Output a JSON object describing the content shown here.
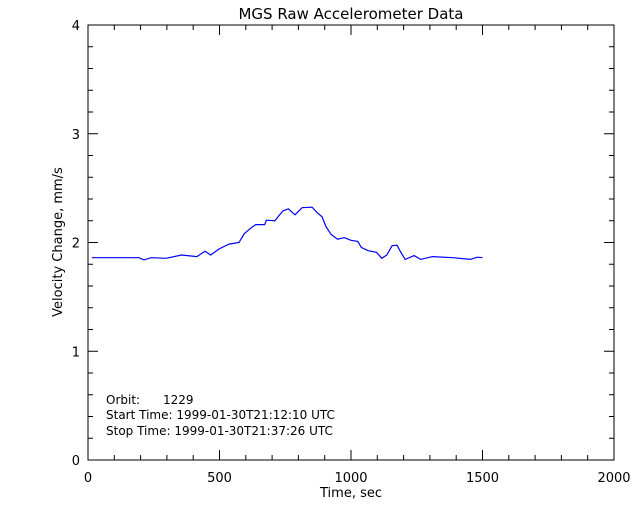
{
  "chart_data": {
    "type": "line",
    "title": "MGS Raw Accelerometer Data",
    "xlabel": "Time, sec",
    "ylabel": "Velocity Change, mm/s",
    "xlim": [
      0,
      2000
    ],
    "ylim": [
      0,
      4
    ],
    "xticks": [
      0,
      500,
      1000,
      1500,
      2000
    ],
    "yticks": [
      0,
      1,
      2,
      3,
      4
    ],
    "xtick_labels": [
      "0",
      "500",
      "1000",
      "1500",
      "2000"
    ],
    "ytick_labels": [
      "0",
      "1",
      "2",
      "3",
      "4"
    ],
    "grid": false,
    "line_color": "#0000ff",
    "annotations": [
      "Orbit:      1229",
      "Start Time: 1999-01-30T21:12:10 UTC",
      "Stop Time: 1999-01-30T21:37:26 UTC"
    ],
    "series": [
      {
        "x": [
          15,
          194,
          213,
          240,
          297,
          356,
          414,
          445,
          466,
          498,
          536,
          574,
          594,
          620,
          638,
          672,
          678,
          711,
          722,
          741,
          762,
          787,
          814,
          852,
          871,
          890,
          904,
          924,
          949,
          974,
          1000,
          1026,
          1039,
          1065,
          1097,
          1117,
          1136,
          1156,
          1175,
          1187,
          1206,
          1240,
          1265,
          1310,
          1388,
          1453,
          1480,
          1500
        ],
        "y": [
          1.86,
          1.86,
          1.84,
          1.86,
          1.855,
          1.885,
          1.87,
          1.92,
          1.885,
          1.94,
          1.985,
          2.0,
          2.08,
          2.135,
          2.165,
          2.165,
          2.205,
          2.2,
          2.235,
          2.29,
          2.31,
          2.255,
          2.32,
          2.325,
          2.275,
          2.235,
          2.15,
          2.075,
          2.03,
          2.045,
          2.02,
          2.01,
          1.955,
          1.925,
          1.91,
          1.855,
          1.885,
          1.97,
          1.975,
          1.92,
          1.845,
          1.88,
          1.845,
          1.87,
          1.86,
          1.845,
          1.865,
          1.86
        ]
      }
    ]
  }
}
